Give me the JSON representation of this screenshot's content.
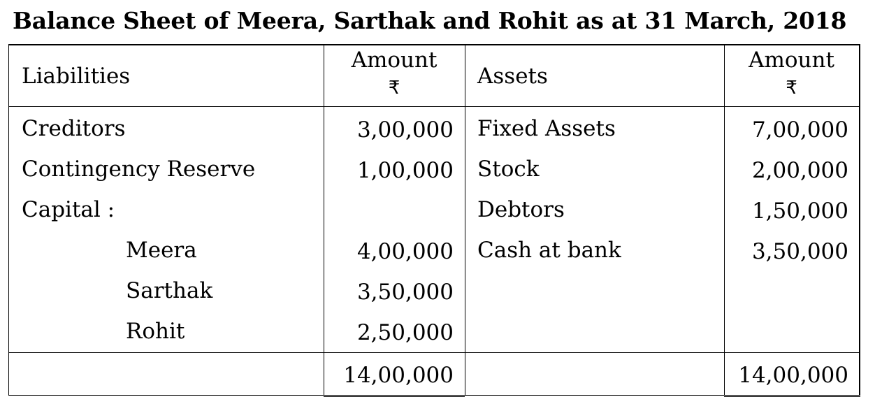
{
  "title": "Balance Sheet of Meera, Sarthak and Rohit as at 31 March, 2018",
  "headers": {
    "liabilities": "Liabilities",
    "liab_amount": "Amount",
    "assets": "Assets",
    "asset_amount": "Amount",
    "currency_symbol": "₹"
  },
  "liabilities": [
    {
      "label": "Creditors",
      "amount": "3,00,000"
    },
    {
      "label": "Contingency Reserve",
      "amount": "1,00,000"
    },
    {
      "label": "Capital :",
      "amount": ""
    },
    {
      "label": "Meera",
      "amount": "4,00,000"
    },
    {
      "label": "Sarthak",
      "amount": "3,50,000"
    },
    {
      "label": "Rohit",
      "amount": "2,50,000"
    }
  ],
  "assets": [
    {
      "label": "Fixed Assets",
      "amount": "7,00,000"
    },
    {
      "label": "Stock",
      "amount": "2,00,000"
    },
    {
      "label": "Debtors",
      "amount": "1,50,000"
    },
    {
      "label": "Cash at bank",
      "amount": "3,50,000"
    }
  ],
  "totals": {
    "liabilities": "14,00,000",
    "assets": "14,00,000"
  }
}
